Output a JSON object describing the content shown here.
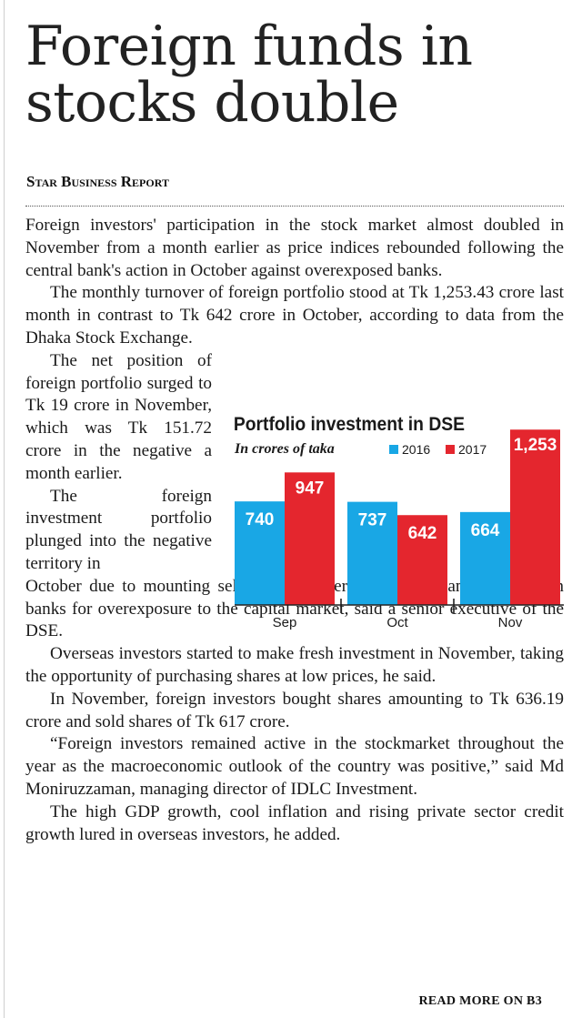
{
  "article": {
    "headline": "Foreign funds in stocks double",
    "byline": "Star Business Report",
    "paragraphs": [
      "Foreign investors' participation in the stock market almost doubled in November from a month earlier as price indices rebounded following the central bank's action in October against overexposed banks.",
      "The monthly turnover of foreign portfolio stood at Tk 1,253.43 crore last month in contrast to Tk 642 crore in October, according to data from the Dhaka Stock Exchange.",
      "The net position of foreign portfolio surged to Tk 19 crore in November, which was Tk 151.72 crore in the negative a month earlier.",
      "The foreign investment portfolio plunged into the negative territory in",
      "October due to mounting sell pressure after the central bank fined seven banks for overexposure to the capital market, said a senior executive of the DSE.",
      "Overseas investors started to make fresh investment in November, taking the opportunity of purchasing shares at low prices, he said.",
      "In November, foreign investors bought shares amounting to Tk 636.19 crore and sold shares of Tk 617 crore.",
      "“Foreign investors remained active in the stockmarket throughout the year as the macroeconomic outlook of the country was positive,” said Md Moniruzzaman, managing director of IDLC Investment.",
      "The high GDP growth, cool inflation and rising private sector credit growth lured in overseas investors, he added."
    ],
    "read_more": "READ MORE ON B3"
  },
  "colors": {
    "series_2016": "#19a7e5",
    "series_2017": "#e4262e",
    "text": "#1a1a1a"
  },
  "chart_data": {
    "type": "bar",
    "title": "Portfolio investment in DSE",
    "subtitle": "In crores of taka",
    "categories": [
      "Sep",
      "Oct",
      "Nov"
    ],
    "series": [
      {
        "name": "2016",
        "values": [
          740,
          737,
          664
        ],
        "labels": [
          "740",
          "737",
          "664"
        ]
      },
      {
        "name": "2017",
        "values": [
          947,
          642,
          1253
        ],
        "labels": [
          "947",
          "642",
          "1,253"
        ]
      }
    ],
    "ylim": [
      0,
      1300
    ],
    "xlabel": "",
    "ylabel": "",
    "legend": "top-right",
    "grid": false
  }
}
